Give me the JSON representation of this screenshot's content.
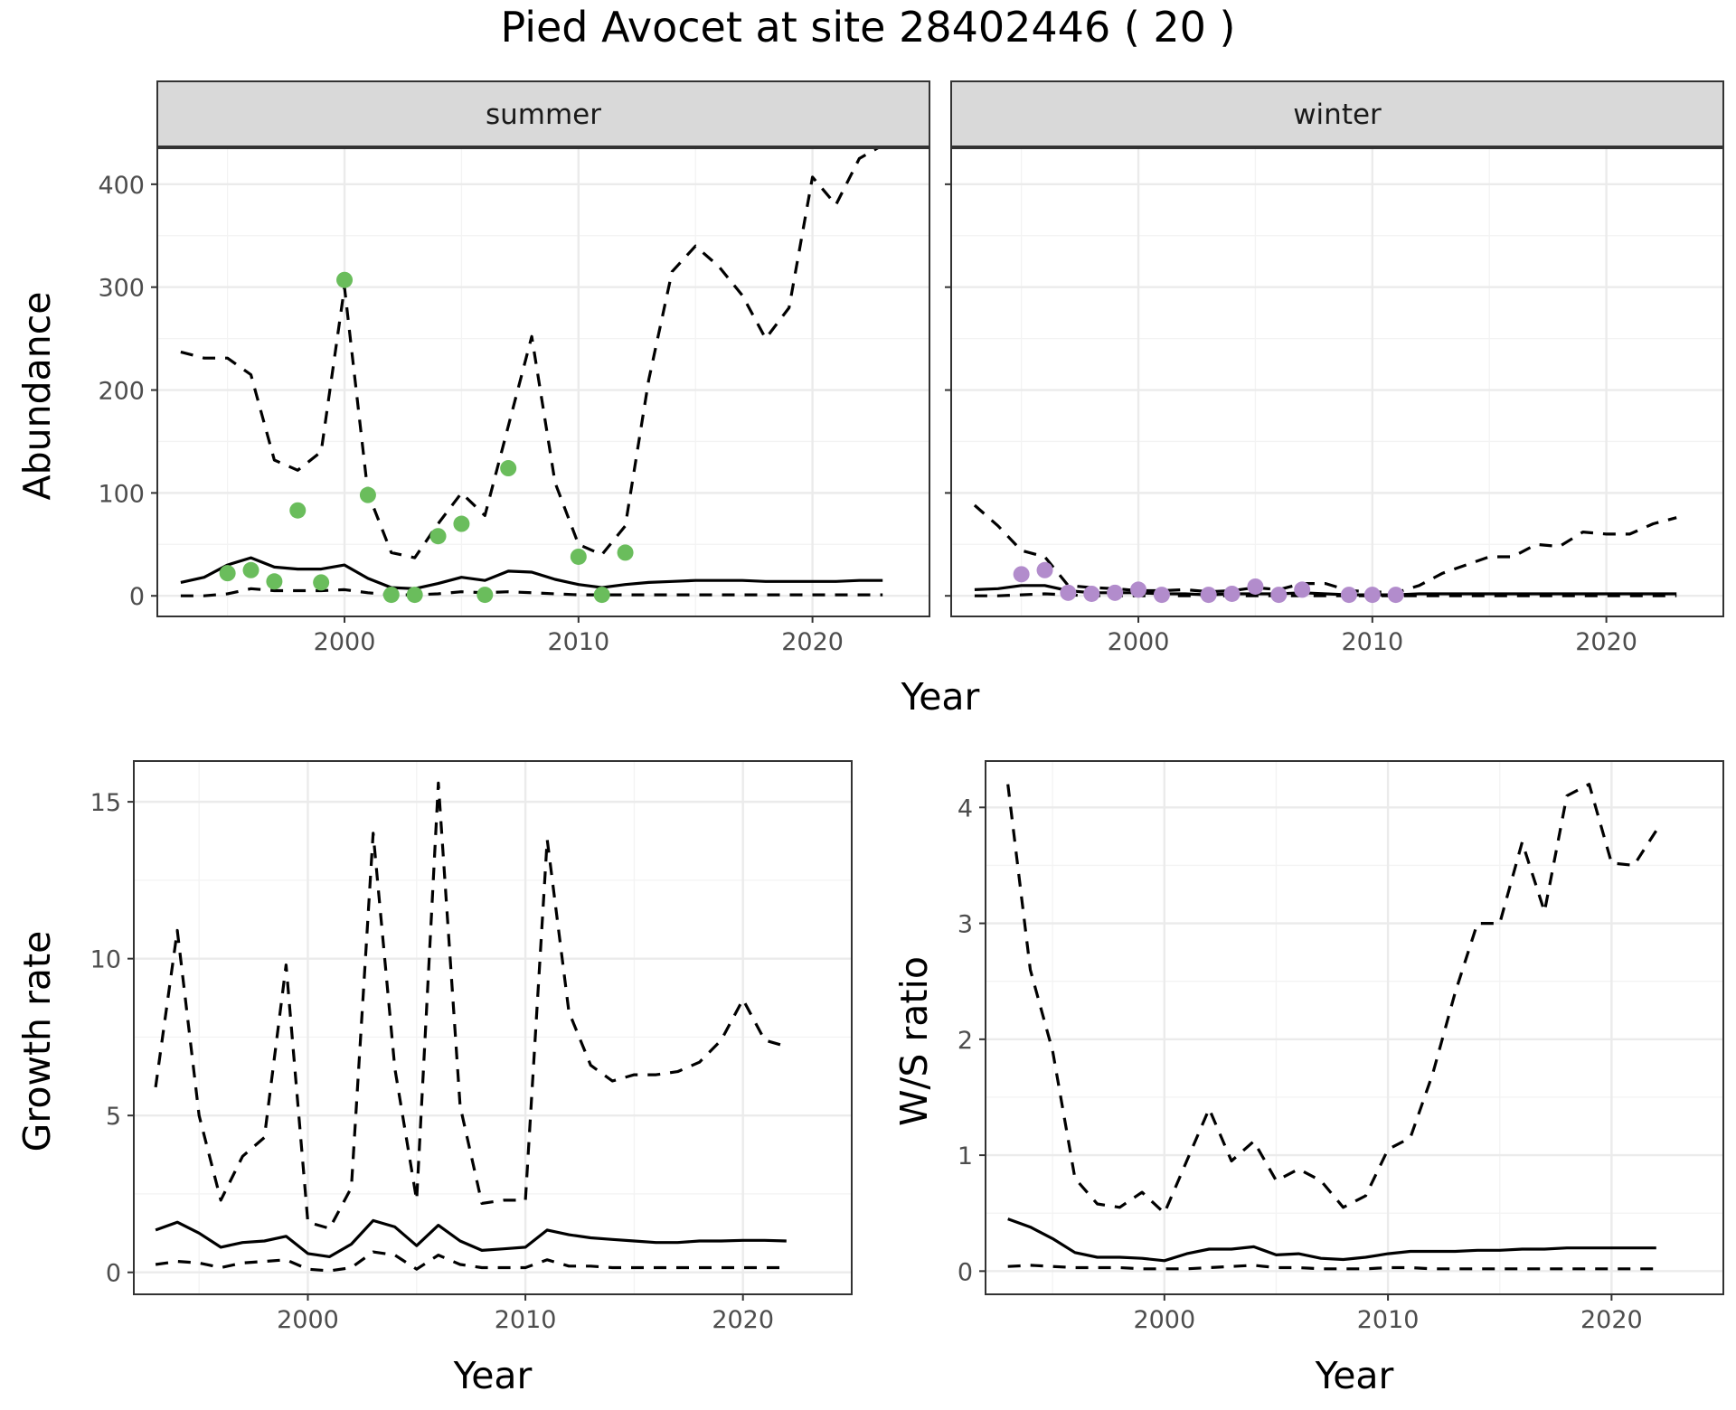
{
  "title": "Pied Avocet at site 28402446 ( 20 )",
  "colors": {
    "summer_points": "#6abd5c",
    "winter_points": "#b28ccc",
    "lines": "#000000"
  },
  "chart_data": [
    {
      "type": "line",
      "facet": "summer",
      "xlabel": "Year",
      "ylabel": "Abundance",
      "xlim": [
        1992,
        2025
      ],
      "ylim": [
        -20,
        435
      ],
      "xticks": [
        2000,
        2010,
        2020
      ],
      "yticks": [
        0,
        100,
        200,
        300,
        400
      ],
      "grid": true,
      "series": [
        {
          "style": "dashed",
          "x": [
            1993,
            1994,
            1995,
            1996,
            1997,
            1998,
            1999,
            2000,
            2001,
            2002,
            2003,
            2004,
            2005,
            2006,
            2007,
            2008,
            2009,
            2010,
            2011,
            2012,
            2013,
            2014,
            2015,
            2016,
            2017,
            2018,
            2019,
            2020,
            2021,
            2022,
            2023
          ],
          "y": [
            237,
            231,
            231,
            215,
            132,
            122,
            140,
            300,
            100,
            42,
            37,
            70,
            100,
            78,
            165,
            252,
            110,
            50,
            40,
            68,
            210,
            315,
            340,
            320,
            292,
            250,
            280,
            407,
            380,
            425,
            438
          ]
        },
        {
          "style": "solid",
          "x": [
            1993,
            1994,
            1995,
            1996,
            1997,
            1998,
            1999,
            2000,
            2001,
            2002,
            2003,
            2004,
            2005,
            2006,
            2007,
            2008,
            2009,
            2010,
            2011,
            2012,
            2013,
            2014,
            2015,
            2016,
            2017,
            2018,
            2019,
            2020,
            2021,
            2022,
            2023
          ],
          "y": [
            13,
            18,
            30,
            37,
            28,
            26,
            26,
            30,
            17,
            8,
            7,
            12,
            18,
            15,
            24,
            23,
            16,
            11,
            8,
            11,
            13,
            14,
            15,
            15,
            15,
            14,
            14,
            14,
            14,
            15,
            15
          ]
        },
        {
          "style": "dashed",
          "x": [
            1993,
            1994,
            1995,
            1996,
            1997,
            1998,
            1999,
            2000,
            2001,
            2002,
            2003,
            2004,
            2005,
            2006,
            2007,
            2008,
            2009,
            2010,
            2011,
            2012,
            2013,
            2014,
            2015,
            2016,
            2017,
            2018,
            2019,
            2020,
            2021,
            2022,
            2023
          ],
          "y": [
            0,
            0,
            2,
            7,
            5,
            5,
            5,
            6,
            3,
            1,
            1,
            2,
            4,
            3,
            4,
            3,
            2,
            1,
            1,
            1,
            1,
            1,
            1,
            1,
            1,
            1,
            1,
            1,
            1,
            1,
            1
          ]
        },
        {
          "style": "points",
          "x": [
            1995,
            1996,
            1997,
            1998,
            1999,
            2000,
            2001,
            2002,
            2003,
            2004,
            2005,
            2006,
            2007,
            2010,
            2011,
            2012
          ],
          "y": [
            22,
            25,
            14,
            83,
            13,
            307,
            98,
            1,
            1,
            58,
            70,
            1,
            124,
            38,
            1,
            42
          ]
        }
      ]
    },
    {
      "type": "line",
      "facet": "winter",
      "xlabel": "Year",
      "ylabel": "Abundance",
      "xlim": [
        1992,
        2025
      ],
      "ylim": [
        -20,
        435
      ],
      "xticks": [
        2000,
        2010,
        2020
      ],
      "yticks": [
        0,
        100,
        200,
        300,
        400
      ],
      "grid": true,
      "series": [
        {
          "style": "dashed",
          "x": [
            1993,
            1994,
            1995,
            1996,
            1997,
            1998,
            1999,
            2000,
            2001,
            2002,
            2003,
            2004,
            2005,
            2006,
            2007,
            2008,
            2009,
            2010,
            2011,
            2012,
            2013,
            2014,
            2015,
            2016,
            2017,
            2018,
            2019,
            2020,
            2021,
            2022,
            2023
          ],
          "y": [
            88,
            68,
            44,
            38,
            10,
            8,
            7,
            5,
            5,
            6,
            4,
            5,
            8,
            6,
            12,
            12,
            5,
            4,
            3,
            10,
            22,
            30,
            38,
            38,
            50,
            48,
            62,
            60,
            60,
            70,
            76
          ]
        },
        {
          "style": "solid",
          "x": [
            1993,
            1994,
            1995,
            1996,
            1997,
            1998,
            1999,
            2000,
            2001,
            2002,
            2003,
            2004,
            2005,
            2006,
            2007,
            2008,
            2009,
            2010,
            2011,
            2012,
            2013,
            2014,
            2015,
            2016,
            2017,
            2018,
            2019,
            2020,
            2021,
            2022,
            2023
          ],
          "y": [
            6,
            7,
            10,
            10,
            5,
            3,
            3,
            3,
            2,
            2,
            1,
            2,
            2,
            2,
            3,
            2,
            1,
            1,
            1,
            2,
            2,
            2,
            2,
            2,
            2,
            2,
            2,
            2,
            2,
            2,
            2
          ]
        },
        {
          "style": "dashed",
          "x": [
            1993,
            1994,
            1995,
            1996,
            1997,
            1998,
            1999,
            2000,
            2001,
            2002,
            2003,
            2004,
            2005,
            2006,
            2007,
            2008,
            2009,
            2010,
            2011,
            2012,
            2013,
            2014,
            2015,
            2016,
            2017,
            2018,
            2019,
            2020,
            2021,
            2022,
            2023
          ],
          "y": [
            0,
            0,
            1,
            2,
            1,
            0,
            0,
            0,
            0,
            0,
            0,
            0,
            0,
            0,
            0,
            0,
            0,
            0,
            0,
            0,
            0,
            0,
            0,
            0,
            0,
            0,
            0,
            0,
            0,
            0,
            0
          ]
        },
        {
          "style": "points",
          "x": [
            1995,
            1996,
            1997,
            1998,
            1999,
            2000,
            2001,
            2003,
            2004,
            2005,
            2006,
            2007,
            2009,
            2010,
            2011
          ],
          "y": [
            21,
            25,
            3,
            2,
            3,
            6,
            1,
            1,
            2,
            9,
            1,
            6,
            1,
            1,
            1
          ]
        }
      ]
    },
    {
      "type": "line",
      "xlabel": "Year",
      "ylabel": "Growth rate",
      "xlim": [
        1992,
        2025
      ],
      "ylim": [
        -0.7,
        16.3
      ],
      "xticks": [
        2000,
        2010,
        2020
      ],
      "yticks": [
        0,
        5,
        10,
        15
      ],
      "grid": true,
      "series": [
        {
          "style": "dashed",
          "x": [
            1993,
            1994,
            1995,
            1996,
            1997,
            1998,
            1999,
            2000,
            2001,
            2002,
            2003,
            2004,
            2005,
            2006,
            2007,
            2008,
            2009,
            2010,
            2011,
            2012,
            2013,
            2014,
            2015,
            2016,
            2017,
            2018,
            2019,
            2020,
            2021,
            2022
          ],
          "y": [
            5.9,
            10.9,
            5.0,
            2.3,
            3.7,
            4.3,
            9.8,
            1.6,
            1.4,
            2.7,
            14.0,
            6.5,
            2.3,
            15.6,
            5.3,
            2.2,
            2.3,
            2.3,
            13.8,
            8.3,
            6.6,
            6.1,
            6.3,
            6.3,
            6.4,
            6.7,
            7.4,
            8.7,
            7.4,
            7.2
          ]
        },
        {
          "style": "solid",
          "x": [
            1993,
            1994,
            1995,
            1996,
            1997,
            1998,
            1999,
            2000,
            2001,
            2002,
            2003,
            2004,
            2005,
            2006,
            2007,
            2008,
            2009,
            2010,
            2011,
            2012,
            2013,
            2014,
            2015,
            2016,
            2017,
            2018,
            2019,
            2020,
            2021,
            2022
          ],
          "y": [
            1.35,
            1.6,
            1.25,
            0.8,
            0.95,
            1.0,
            1.15,
            0.6,
            0.5,
            0.9,
            1.65,
            1.45,
            0.85,
            1.5,
            1.0,
            0.7,
            0.75,
            0.8,
            1.35,
            1.2,
            1.1,
            1.05,
            1.0,
            0.95,
            0.95,
            1.0,
            1.0,
            1.02,
            1.02,
            1.0
          ]
        },
        {
          "style": "dashed",
          "x": [
            1993,
            1994,
            1995,
            1996,
            1997,
            1998,
            1999,
            2000,
            2001,
            2002,
            2003,
            2004,
            2005,
            2006,
            2007,
            2008,
            2009,
            2010,
            2011,
            2012,
            2013,
            2014,
            2015,
            2016,
            2017,
            2018,
            2019,
            2020,
            2021,
            2022
          ],
          "y": [
            0.25,
            0.35,
            0.3,
            0.15,
            0.3,
            0.35,
            0.4,
            0.1,
            0.05,
            0.15,
            0.65,
            0.55,
            0.1,
            0.55,
            0.25,
            0.15,
            0.15,
            0.15,
            0.4,
            0.2,
            0.2,
            0.15,
            0.15,
            0.15,
            0.15,
            0.15,
            0.15,
            0.15,
            0.15,
            0.15
          ]
        }
      ]
    },
    {
      "type": "line",
      "xlabel": "Year",
      "ylabel": "W/S ratio",
      "xlim": [
        1992,
        2025
      ],
      "ylim": [
        -0.2,
        4.4
      ],
      "xticks": [
        2000,
        2010,
        2020
      ],
      "yticks": [
        0,
        1,
        2,
        3,
        4
      ],
      "grid": true,
      "series": [
        {
          "style": "dashed",
          "x": [
            1993,
            1994,
            1995,
            1996,
            1997,
            1998,
            1999,
            2000,
            2001,
            2002,
            2003,
            2004,
            2005,
            2006,
            2007,
            2008,
            2009,
            2010,
            2011,
            2012,
            2013,
            2014,
            2015,
            2016,
            2017,
            2018,
            2019,
            2020,
            2021,
            2022
          ],
          "y": [
            4.2,
            2.6,
            1.9,
            0.8,
            0.58,
            0.55,
            0.68,
            0.5,
            0.95,
            1.4,
            0.95,
            1.12,
            0.78,
            0.88,
            0.78,
            0.55,
            0.65,
            1.05,
            1.15,
            1.7,
            2.4,
            3.0,
            3.0,
            3.7,
            3.1,
            4.1,
            4.2,
            3.52,
            3.5,
            3.8
          ]
        },
        {
          "style": "solid",
          "x": [
            1993,
            1994,
            1995,
            1996,
            1997,
            1998,
            1999,
            2000,
            2001,
            2002,
            2003,
            2004,
            2005,
            2006,
            2007,
            2008,
            2009,
            2010,
            2011,
            2012,
            2013,
            2014,
            2015,
            2016,
            2017,
            2018,
            2019,
            2020,
            2021,
            2022
          ],
          "y": [
            0.45,
            0.38,
            0.28,
            0.16,
            0.12,
            0.12,
            0.11,
            0.09,
            0.15,
            0.19,
            0.19,
            0.21,
            0.14,
            0.15,
            0.11,
            0.1,
            0.12,
            0.15,
            0.17,
            0.17,
            0.17,
            0.18,
            0.18,
            0.19,
            0.19,
            0.2,
            0.2,
            0.2,
            0.2,
            0.2
          ]
        },
        {
          "style": "dashed",
          "x": [
            1993,
            1994,
            1995,
            1996,
            1997,
            1998,
            1999,
            2000,
            2001,
            2002,
            2003,
            2004,
            2005,
            2006,
            2007,
            2008,
            2009,
            2010,
            2011,
            2012,
            2013,
            2014,
            2015,
            2016,
            2017,
            2018,
            2019,
            2020,
            2021,
            2022
          ],
          "y": [
            0.04,
            0.05,
            0.04,
            0.03,
            0.03,
            0.03,
            0.02,
            0.02,
            0.02,
            0.03,
            0.04,
            0.05,
            0.03,
            0.03,
            0.02,
            0.02,
            0.02,
            0.03,
            0.03,
            0.02,
            0.02,
            0.02,
            0.02,
            0.02,
            0.02,
            0.02,
            0.02,
            0.02,
            0.02,
            0.02
          ]
        }
      ]
    }
  ],
  "top_xlabel": "Year"
}
